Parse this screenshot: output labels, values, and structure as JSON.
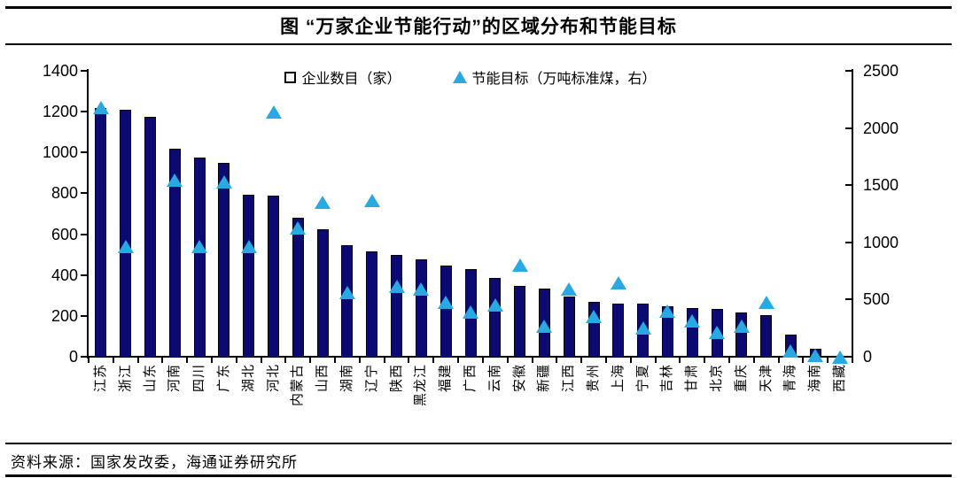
{
  "title": "图  “万家企业节能行动”的区域分布和节能目标",
  "source": "资料来源：国家发改委，海通证券研究所",
  "legend": {
    "bars_label": "企业数目（家）",
    "triangles_label": "节能目标（万吨标准煤，右）"
  },
  "colors": {
    "bar": "#0a0a72",
    "bar_border": "#000000",
    "triangle": "#29a9e1",
    "axis": "#000000"
  },
  "chart_data": {
    "type": "bar",
    "title": "图  “万家企业节能行动”的区域分布和节能目标",
    "categories": [
      "江苏",
      "浙江",
      "山东",
      "河南",
      "四川",
      "广东",
      "湖北",
      "河北",
      "内蒙古",
      "山西",
      "湖南",
      "辽宁",
      "陕西",
      "黑龙江",
      "福建",
      "广西",
      "云南",
      "安徽",
      "新疆",
      "江西",
      "贵州",
      "上海",
      "宁夏",
      "吉林",
      "甘肃",
      "北京",
      "重庆",
      "天津",
      "青海",
      "海南",
      "西藏"
    ],
    "series": [
      {
        "name": "企业数目（家）",
        "type": "bar",
        "axis": "left",
        "values": [
          1220,
          1210,
          1175,
          1020,
          975,
          950,
          795,
          790,
          680,
          625,
          545,
          515,
          500,
          475,
          445,
          430,
          385,
          345,
          335,
          295,
          270,
          262,
          258,
          245,
          240,
          235,
          215,
          205,
          108,
          38,
          5
        ]
      },
      {
        "name": "节能目标（万吨标准煤，右）",
        "type": "scatter-triangle",
        "axis": "right",
        "values": [
          2180,
          965,
          null,
          1545,
          965,
          1530,
          965,
          2140,
          1130,
          1350,
          565,
          1365,
          615,
          590,
          475,
          390,
          450,
          800,
          270,
          590,
          350,
          650,
          255,
          400,
          310,
          215,
          270,
          475,
          50,
          10,
          0
        ]
      }
    ],
    "left_axis": {
      "label": "企业数目（家）",
      "min": 0,
      "max": 1400,
      "step": 200,
      "ticks": [
        0,
        200,
        400,
        600,
        800,
        1000,
        1200,
        1400
      ]
    },
    "right_axis": {
      "label": "节能目标（万吨标准煤，右）",
      "min": 0,
      "max": 2500,
      "step": 500,
      "ticks": [
        0,
        500,
        1000,
        1500,
        2000,
        2500
      ]
    },
    "grid": false,
    "legend_position": "top-center",
    "x_tick_label_rotation": -90
  }
}
